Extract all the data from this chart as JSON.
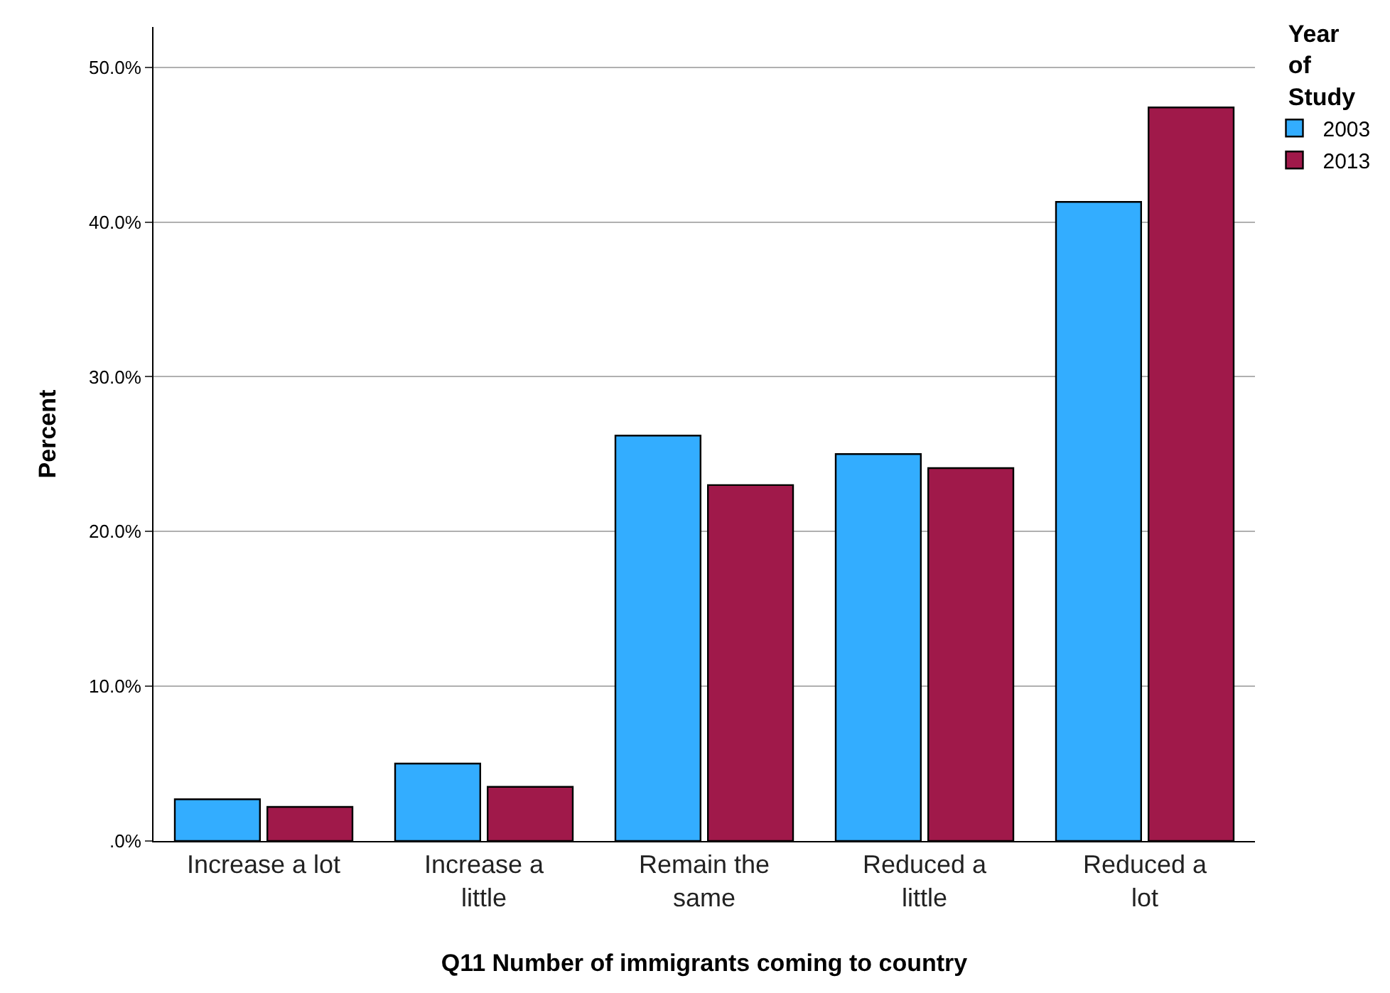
{
  "chart_data": {
    "type": "bar",
    "xlabel": "Q11 Number of immigrants coming to country",
    "ylabel": "Percent",
    "legend_title": "Year\nof\nStudy",
    "categories": [
      "Increase a lot",
      "Increase a\nlittle",
      "Remain the\nsame",
      "Reduced a\nlittle",
      "Reduced a\nlot"
    ],
    "series": [
      {
        "name": "2003",
        "color": "#33adff",
        "values": [
          2.7,
          5.0,
          26.2,
          25.0,
          41.3
        ]
      },
      {
        "name": "2013",
        "color": "#a0194a",
        "values": [
          2.2,
          3.5,
          23.0,
          24.1,
          47.4
        ]
      }
    ],
    "ylim": [
      0,
      52.6
    ],
    "yticks": [
      {
        "value": 0,
        "label": ".0%"
      },
      {
        "value": 10,
        "label": "10.0%"
      },
      {
        "value": 20,
        "label": "20.0%"
      },
      {
        "value": 30,
        "label": "30.0%"
      },
      {
        "value": 40,
        "label": "40.0%"
      },
      {
        "value": 50,
        "label": "50.0%"
      }
    ],
    "grid": "y",
    "legend": "top right"
  }
}
